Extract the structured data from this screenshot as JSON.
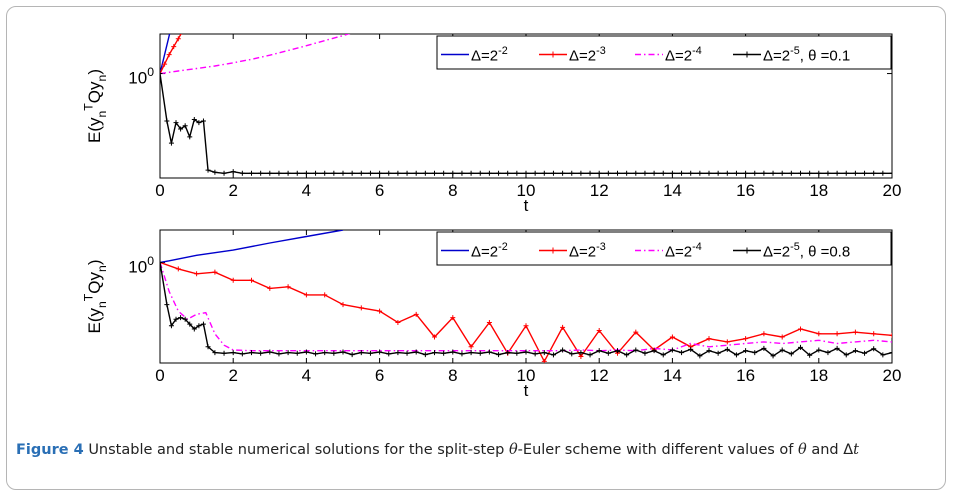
{
  "figure": {
    "label": "Figure 4",
    "caption_start": "Unstable and stable numerical solutions for the split-step ",
    "caption_theta": "θ",
    "caption_mid": "-Euler scheme with different values of ",
    "caption_theta2": "θ",
    "caption_end": " and Δ",
    "caption_t": "t"
  },
  "chart_data": [
    {
      "type": "line",
      "xlabel": "t",
      "ylabel": "E(y_n^T Q y_n)",
      "ytick_label": "10^0",
      "xlim": [
        0,
        20
      ],
      "xticks": [
        0,
        2,
        4,
        6,
        8,
        10,
        12,
        14,
        16,
        18,
        20
      ],
      "yscale": "log",
      "ylim_log10": [
        -3.3,
        1.25
      ],
      "legend": {
        "placement": "top-right",
        "theta_label": "θ =0.1"
      },
      "series": [
        {
          "name": "Δ=2^-2",
          "color": "#0000cc",
          "marker": "none",
          "style": "solid",
          "x": [
            0,
            0.25,
            0.5
          ],
          "y_log10": [
            0,
            1.2,
            2.4
          ]
        },
        {
          "name": "Δ=2^-3",
          "color": "#ff0000",
          "marker": "plus",
          "style": "solid",
          "x": [
            0,
            0.125,
            0.25,
            0.375,
            0.5,
            0.625
          ],
          "y_log10": [
            0,
            0.3,
            0.6,
            0.85,
            1.1,
            1.35
          ]
        },
        {
          "name": "Δ=2^-4",
          "color": "#ff00ff",
          "marker": "none",
          "style": "dashdot",
          "x": [
            0,
            0.5,
            1,
            1.5,
            2,
            2.5,
            3,
            3.5,
            4,
            4.5,
            5,
            5.5
          ],
          "y_log10": [
            0,
            0.08,
            0.16,
            0.24,
            0.34,
            0.45,
            0.58,
            0.73,
            0.88,
            1.04,
            1.2,
            1.38
          ]
        },
        {
          "name": "Δ=2^-5",
          "color": "#000000",
          "marker": "plus",
          "style": "solid",
          "x": [
            0,
            0.1875,
            0.3125,
            0.4375,
            0.5625,
            0.6875,
            0.8125,
            0.9375,
            1.0625,
            1.1875,
            1.3125,
            1.5,
            1.75,
            2,
            2.25,
            2.5,
            2.75,
            3,
            3.25,
            3.5,
            3.75,
            4,
            4.25,
            4.5,
            4.75,
            5,
            5.25,
            5.5,
            5.75,
            6,
            6.25,
            6.5,
            6.75,
            7,
            7.25,
            7.5,
            7.75,
            8,
            8.25,
            8.5,
            8.75,
            9,
            9.25,
            9.5,
            9.75,
            10,
            10.25,
            10.5,
            10.75,
            11,
            11.25,
            11.5,
            11.75,
            12,
            12.25,
            12.5,
            12.75,
            13,
            13.25,
            13.5,
            13.75,
            14,
            14.25,
            14.5,
            14.75,
            15,
            15.25,
            15.5,
            15.75,
            16,
            16.25,
            16.5,
            16.75,
            17,
            17.25,
            17.5,
            17.75,
            18,
            18.25,
            18.5,
            18.75,
            19,
            19.25,
            19.5,
            19.75,
            20
          ],
          "y_log10": [
            0,
            -1.5,
            -2.2,
            -1.55,
            -1.75,
            -1.65,
            -2.0,
            -1.45,
            -1.55,
            -1.5,
            -3.05,
            -3.12,
            -3.15,
            -3.1,
            -3.15,
            -3.15,
            -3.15,
            -3.15,
            -3.15,
            -3.15,
            -3.15,
            -3.15,
            -3.15,
            -3.15,
            -3.15,
            -3.15,
            -3.15,
            -3.15,
            -3.15,
            -3.15,
            -3.15,
            -3.15,
            -3.15,
            -3.15,
            -3.15,
            -3.15,
            -3.15,
            -3.15,
            -3.15,
            -3.15,
            -3.15,
            -3.15,
            -3.15,
            -3.15,
            -3.15,
            -3.15,
            -3.15,
            -3.15,
            -3.15,
            -3.15,
            -3.15,
            -3.15,
            -3.15,
            -3.15,
            -3.15,
            -3.15,
            -3.15,
            -3.15,
            -3.15,
            -3.15,
            -3.15,
            -3.15,
            -3.15,
            -3.15,
            -3.15,
            -3.15,
            -3.15,
            -3.15,
            -3.15,
            -3.15,
            -3.15,
            -3.15,
            -3.15,
            -3.15,
            -3.15,
            -3.15,
            -3.15,
            -3.15,
            -3.15,
            -3.15,
            -3.15,
            -3.15,
            -3.15,
            -3.15,
            -3.15,
            -3.15
          ]
        }
      ]
    },
    {
      "type": "line",
      "xlabel": "t",
      "ylabel": "E(y_n^T Q y_n)",
      "ytick_label": "10^0",
      "xlim": [
        0,
        20
      ],
      "xticks": [
        0,
        2,
        4,
        6,
        8,
        10,
        12,
        14,
        16,
        18,
        20
      ],
      "yscale": "log",
      "ylim_log10": [
        -3.1,
        1.0
      ],
      "legend": {
        "placement": "top-right",
        "theta_label": "θ =0.8"
      },
      "series": [
        {
          "name": "Δ=2^-2",
          "color": "#0000cc",
          "marker": "none",
          "style": "solid",
          "x": [
            0,
            0.25,
            1,
            2,
            3,
            4,
            5
          ],
          "y_log10": [
            0,
            0.05,
            0.22,
            0.38,
            0.6,
            0.8,
            1.0
          ]
        },
        {
          "name": "Δ=2^-3",
          "color": "#ff0000",
          "marker": "plus",
          "style": "solid",
          "x": [
            0,
            0.5,
            1,
            1.5,
            2,
            2.5,
            3,
            3.5,
            4,
            4.5,
            5,
            5.5,
            6,
            6.5,
            7,
            7.5,
            8,
            8.5,
            9,
            9.5,
            10,
            10.5,
            11,
            11.5,
            12,
            12.5,
            13,
            13.5,
            14,
            14.5,
            15,
            15.5,
            16,
            16.5,
            17,
            17.5,
            18,
            18.5,
            19,
            19.5,
            20
          ],
          "y_log10": [
            0,
            -0.2,
            -0.35,
            -0.3,
            -0.55,
            -0.55,
            -0.8,
            -0.75,
            -1.0,
            -1.0,
            -1.3,
            -1.4,
            -1.5,
            -1.85,
            -1.6,
            -2.3,
            -1.7,
            -2.6,
            -1.85,
            -2.8,
            -1.95,
            -3.05,
            -2.0,
            -2.9,
            -2.1,
            -2.8,
            -2.15,
            -2.7,
            -2.3,
            -2.6,
            -2.35,
            -2.45,
            -2.35,
            -2.2,
            -2.3,
            -2.05,
            -2.2,
            -2.2,
            -2.15,
            -2.2,
            -2.25
          ]
        },
        {
          "name": "Δ=2^-4",
          "color": "#ff00ff",
          "marker": "none",
          "style": "dashdot",
          "x": [
            0,
            0.25,
            0.5,
            0.75,
            1,
            1.25,
            1.5,
            1.75,
            2,
            2.5,
            3,
            3.5,
            4,
            5,
            6,
            7,
            8,
            9,
            10,
            10.5,
            11,
            11.5,
            12,
            12.5,
            13,
            13.5,
            14,
            14.5,
            15,
            15.5,
            16,
            16.5,
            17,
            17.5,
            18,
            18.5,
            19,
            19.5,
            20
          ],
          "y_log10": [
            0,
            -0.9,
            -1.5,
            -1.75,
            -1.6,
            -1.55,
            -2.2,
            -2.55,
            -2.7,
            -2.72,
            -2.72,
            -2.72,
            -2.72,
            -2.72,
            -2.72,
            -2.72,
            -2.72,
            -2.72,
            -2.72,
            -2.72,
            -2.72,
            -2.7,
            -2.72,
            -2.7,
            -2.72,
            -2.65,
            -2.7,
            -2.5,
            -2.6,
            -2.55,
            -2.5,
            -2.45,
            -2.5,
            -2.45,
            -2.4,
            -2.5,
            -2.45,
            -2.4,
            -2.45
          ]
        },
        {
          "name": "Δ=2^-5",
          "color": "#000000",
          "marker": "plus",
          "style": "solid",
          "x": [
            0,
            0.1875,
            0.3125,
            0.4375,
            0.5625,
            0.6875,
            0.8125,
            0.9375,
            1.0625,
            1.1875,
            1.3125,
            1.5,
            1.75,
            2,
            2.25,
            2.5,
            2.75,
            3,
            3.25,
            3.5,
            3.75,
            4,
            4.25,
            4.5,
            4.75,
            5,
            5.25,
            5.5,
            5.75,
            6,
            6.25,
            6.5,
            6.75,
            7,
            7.25,
            7.5,
            7.75,
            8,
            8.25,
            8.5,
            8.75,
            9,
            9.25,
            9.5,
            9.75,
            10,
            10.25,
            10.5,
            10.75,
            11,
            11.25,
            11.5,
            11.75,
            12,
            12.25,
            12.5,
            12.75,
            13,
            13.25,
            13.5,
            13.75,
            14,
            14.25,
            14.5,
            14.75,
            15,
            15.25,
            15.5,
            15.75,
            16,
            16.25,
            16.5,
            16.75,
            17,
            17.25,
            17.5,
            17.75,
            18,
            18.25,
            18.5,
            18.75,
            19,
            19.25,
            19.5,
            19.75,
            20
          ],
          "y_log10": [
            0,
            -1.3,
            -1.95,
            -1.75,
            -1.7,
            -1.75,
            -1.9,
            -2.05,
            -1.95,
            -1.9,
            -2.6,
            -2.78,
            -2.8,
            -2.78,
            -2.82,
            -2.78,
            -2.8,
            -2.76,
            -2.82,
            -2.78,
            -2.8,
            -2.76,
            -2.82,
            -2.78,
            -2.8,
            -2.76,
            -2.84,
            -2.78,
            -2.8,
            -2.76,
            -2.82,
            -2.78,
            -2.8,
            -2.76,
            -2.84,
            -2.78,
            -2.8,
            -2.76,
            -2.82,
            -2.78,
            -2.8,
            -2.76,
            -2.84,
            -2.78,
            -2.8,
            -2.76,
            -2.82,
            -2.78,
            -2.85,
            -2.7,
            -2.82,
            -2.78,
            -2.85,
            -2.72,
            -2.8,
            -2.72,
            -2.85,
            -2.7,
            -2.8,
            -2.72,
            -2.85,
            -2.7,
            -2.78,
            -2.68,
            -2.88,
            -2.72,
            -2.8,
            -2.68,
            -2.85,
            -2.72,
            -2.78,
            -2.65,
            -2.88,
            -2.7,
            -2.82,
            -2.62,
            -2.86,
            -2.7,
            -2.78,
            -2.65,
            -2.85,
            -2.72,
            -2.8,
            -2.66,
            -2.85,
            -2.78
          ]
        }
      ]
    }
  ]
}
